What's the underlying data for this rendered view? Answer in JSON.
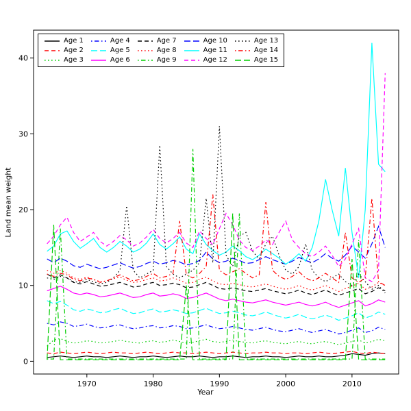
{
  "figure": {
    "xlabel": "Year",
    "ylabel": "Land mean weight"
  },
  "chart_data": {
    "type": "line",
    "title": "",
    "xlabel": "Year",
    "ylabel": "Land mean weight",
    "xlim": [
      1964,
      2015
    ],
    "ylim": [
      0,
      42
    ],
    "x_ticks": [
      1970,
      1980,
      1990,
      2000,
      2010
    ],
    "y_ticks": [
      0,
      10,
      20,
      30,
      40
    ],
    "grid": false,
    "legend_position": "top-left",
    "x": [
      1964,
      1965,
      1966,
      1967,
      1968,
      1969,
      1970,
      1971,
      1972,
      1973,
      1974,
      1975,
      1976,
      1977,
      1978,
      1979,
      1980,
      1981,
      1982,
      1983,
      1984,
      1985,
      1986,
      1987,
      1988,
      1989,
      1990,
      1991,
      1992,
      1993,
      1994,
      1995,
      1996,
      1997,
      1998,
      1999,
      2000,
      2001,
      2002,
      2003,
      2004,
      2005,
      2006,
      2007,
      2008,
      2009,
      2010,
      2011,
      2012,
      2013,
      2014,
      2015
    ],
    "series": [
      {
        "name": "Age 1",
        "color": "#000000",
        "linestyle": "solid",
        "values": [
          0.5,
          0.6,
          0.7,
          0.6,
          0.5,
          0.6,
          0.7,
          0.6,
          0.6,
          0.5,
          0.6,
          0.7,
          0.6,
          0.5,
          0.6,
          0.6,
          0.7,
          0.6,
          0.5,
          0.6,
          0.7,
          0.6,
          0.6,
          0.7,
          0.6,
          0.5,
          0.6,
          0.6,
          0.7,
          0.6,
          0.5,
          0.6,
          0.6,
          0.7,
          0.6,
          0.6,
          0.5,
          0.6,
          0.7,
          0.6,
          0.6,
          0.7,
          0.6,
          0.6,
          0.7,
          0.8,
          1.0,
          0.9,
          0.8,
          1.0,
          1.1,
          1.0
        ]
      },
      {
        "name": "Age 2",
        "color": "#FF0000",
        "linestyle": "dashed",
        "values": [
          1.1,
          1.0,
          1.2,
          1.1,
          1.0,
          1.1,
          1.2,
          1.1,
          1.0,
          1.1,
          1.2,
          1.1,
          1.1,
          1.0,
          1.1,
          1.2,
          1.1,
          1.0,
          1.1,
          1.2,
          1.1,
          1.1,
          1.0,
          1.1,
          1.2,
          1.1,
          1.0,
          1.1,
          1.2,
          1.1,
          1.0,
          1.1,
          1.1,
          1.2,
          1.1,
          1.1,
          1.0,
          1.1,
          1.1,
          1.0,
          1.1,
          1.2,
          1.1,
          1.0,
          1.1,
          1.2,
          1.3,
          1.1,
          1.0,
          1.2,
          1.1,
          1.0
        ]
      },
      {
        "name": "Age 3",
        "color": "#00CD00",
        "linestyle": "dotted",
        "values": [
          2.0,
          2.8,
          3.0,
          2.6,
          2.4,
          2.5,
          2.7,
          2.6,
          2.4,
          2.5,
          2.6,
          2.8,
          2.6,
          2.5,
          2.4,
          2.6,
          2.7,
          2.5,
          2.6,
          2.8,
          2.6,
          2.4,
          2.5,
          2.7,
          2.9,
          2.6,
          2.5,
          2.6,
          2.8,
          2.6,
          2.5,
          2.4,
          2.6,
          2.7,
          2.5,
          2.4,
          2.3,
          2.5,
          2.6,
          2.4,
          2.3,
          2.5,
          2.6,
          2.4,
          2.2,
          2.4,
          2.6,
          2.8,
          2.4,
          2.6,
          2.9,
          2.7
        ]
      },
      {
        "name": "Age 4",
        "color": "#0000FF",
        "linestyle": "dashdot",
        "values": [
          5.0,
          4.8,
          5.2,
          5.0,
          4.6,
          4.7,
          4.9,
          4.6,
          4.4,
          4.5,
          4.7,
          4.8,
          4.5,
          4.3,
          4.4,
          4.6,
          4.7,
          4.4,
          4.5,
          4.7,
          4.6,
          4.3,
          4.4,
          4.6,
          4.8,
          4.5,
          4.3,
          4.4,
          4.6,
          4.4,
          4.2,
          4.1,
          4.3,
          4.5,
          4.2,
          4.0,
          3.9,
          4.1,
          4.3,
          4.0,
          3.8,
          4.0,
          4.2,
          3.9,
          3.6,
          3.8,
          4.1,
          4.4,
          3.8,
          4.0,
          4.5,
          4.2
        ]
      },
      {
        "name": "Age 5",
        "color": "#00FFFF",
        "linestyle": "longdash",
        "values": [
          8.0,
          7.6,
          7.9,
          7.4,
          6.8,
          6.6,
          6.9,
          6.7,
          6.4,
          6.5,
          6.8,
          7.0,
          6.6,
          6.3,
          6.4,
          6.7,
          6.9,
          6.5,
          6.6,
          6.8,
          6.6,
          6.3,
          6.4,
          6.7,
          7.0,
          6.6,
          6.3,
          6.4,
          6.6,
          6.4,
          6.1,
          6.0,
          6.2,
          6.5,
          6.2,
          5.9,
          5.7,
          5.9,
          6.2,
          5.8,
          5.6,
          5.8,
          6.1,
          5.8,
          5.4,
          5.7,
          6.0,
          6.4,
          5.7,
          6.0,
          6.5,
          6.2
        ]
      },
      {
        "name": "Age 6",
        "color": "#FF00FF",
        "linestyle": "solid",
        "values": [
          9.3,
          9.6,
          9.9,
          9.5,
          9.0,
          8.8,
          9.0,
          8.8,
          8.5,
          8.6,
          8.8,
          9.0,
          8.7,
          8.4,
          8.5,
          8.8,
          9.0,
          8.6,
          8.7,
          8.9,
          8.7,
          8.3,
          8.4,
          8.7,
          9.0,
          8.6,
          8.2,
          8.0,
          8.2,
          8.0,
          7.8,
          7.7,
          7.9,
          8.1,
          7.8,
          7.6,
          7.4,
          7.6,
          7.8,
          7.5,
          7.3,
          7.5,
          7.8,
          7.4,
          7.1,
          7.4,
          7.7,
          8.0,
          7.3,
          7.6,
          8.1,
          7.8
        ]
      },
      {
        "name": "Age 7",
        "color": "#000000",
        "linestyle": "dashed",
        "values": [
          11.5,
          11.0,
          11.4,
          11.0,
          10.4,
          10.2,
          10.5,
          10.2,
          9.9,
          10.0,
          10.2,
          10.4,
          10.1,
          9.8,
          9.9,
          10.2,
          10.4,
          10.0,
          10.1,
          10.3,
          10.1,
          9.7,
          9.8,
          10.1,
          10.4,
          10.0,
          9.6,
          9.5,
          9.7,
          9.5,
          9.3,
          9.2,
          9.4,
          9.6,
          9.3,
          9.1,
          8.9,
          9.1,
          9.4,
          9.0,
          8.8,
          9.1,
          9.4,
          9.0,
          8.7,
          9.0,
          9.3,
          9.6,
          8.9,
          9.2,
          9.7,
          9.3
        ]
      },
      {
        "name": "Age 8",
        "color": "#FF0000",
        "linestyle": "dotted",
        "values": [
          12.0,
          11.6,
          12.0,
          11.6,
          11.0,
          10.8,
          11.1,
          10.8,
          10.5,
          10.6,
          10.9,
          11.1,
          10.7,
          10.4,
          10.5,
          10.8,
          11.0,
          10.6,
          10.7,
          11.0,
          10.7,
          10.3,
          10.4,
          10.8,
          11.1,
          10.6,
          10.2,
          10.1,
          10.3,
          10.1,
          9.9,
          9.8,
          10.0,
          10.2,
          9.9,
          9.7,
          9.5,
          9.7,
          10.0,
          9.6,
          9.4,
          9.7,
          10.0,
          9.6,
          9.2,
          9.6,
          9.9,
          10.3,
          9.5,
          9.8,
          10.4,
          10.0
        ]
      },
      {
        "name": "Age 9",
        "color": "#00CD00",
        "linestyle": "dashdot",
        "values": [
          0.3,
          0.3,
          17.5,
          0.3,
          0.3,
          0.3,
          0.3,
          0.3,
          0.3,
          0.3,
          0.3,
          0.3,
          0.3,
          0.3,
          0.3,
          0.3,
          0.3,
          0.3,
          0.3,
          0.3,
          0.3,
          0.3,
          28.0,
          0.3,
          0.3,
          0.3,
          0.3,
          0.3,
          0.3,
          19.5,
          0.3,
          0.3,
          0.3,
          0.3,
          0.3,
          0.3,
          0.3,
          0.3,
          0.3,
          0.3,
          0.3,
          0.3,
          0.3,
          0.3,
          0.3,
          0.3,
          0.3,
          16.0,
          0.3,
          0.3,
          0.3,
          0.3
        ]
      },
      {
        "name": "Age 10",
        "color": "#0000FF",
        "linestyle": "longdash",
        "values": [
          13.5,
          13.0,
          13.6,
          13.2,
          12.6,
          12.4,
          12.8,
          12.5,
          12.2,
          12.4,
          12.7,
          13.0,
          12.6,
          12.3,
          12.5,
          12.9,
          13.2,
          12.8,
          13.0,
          13.3,
          13.1,
          12.7,
          12.9,
          13.3,
          14.4,
          13.5,
          13.0,
          13.2,
          13.6,
          13.3,
          12.9,
          13.0,
          13.4,
          13.8,
          13.4,
          13.1,
          12.8,
          13.2,
          13.7,
          13.3,
          13.0,
          13.5,
          14.2,
          13.6,
          13.2,
          14.0,
          15.2,
          14.4,
          13.6,
          15.5,
          17.8,
          15.0
        ]
      },
      {
        "name": "Age 11",
        "color": "#00FFFF",
        "linestyle": "solid",
        "values": [
          14.5,
          15.2,
          16.8,
          17.2,
          15.8,
          14.9,
          15.5,
          16.2,
          15.0,
          14.4,
          15.0,
          15.8,
          15.2,
          14.4,
          14.8,
          15.6,
          16.8,
          15.4,
          14.8,
          15.5,
          16.4,
          14.8,
          14.2,
          16.8,
          15.4,
          14.6,
          14.0,
          14.4,
          15.2,
          14.6,
          13.8,
          13.4,
          14.0,
          14.8,
          14.2,
          13.6,
          12.8,
          13.4,
          14.2,
          13.2,
          15.0,
          18.5,
          24.0,
          20.0,
          16.5,
          25.5,
          17.0,
          11.0,
          20.0,
          42.0,
          26.0,
          25.0
        ]
      },
      {
        "name": "Age 12",
        "color": "#FF00FF",
        "linestyle": "dashed",
        "values": [
          15.5,
          16.5,
          18.0,
          19.0,
          17.0,
          15.8,
          16.4,
          17.0,
          15.8,
          15.2,
          15.8,
          16.6,
          16.0,
          15.2,
          15.6,
          16.4,
          17.4,
          16.2,
          15.6,
          16.2,
          17.0,
          15.6,
          15.0,
          17.2,
          16.2,
          15.4,
          17.5,
          19.5,
          18.0,
          16.0,
          15.0,
          14.6,
          15.2,
          16.0,
          15.4,
          17.0,
          18.5,
          16.0,
          15.0,
          14.2,
          13.8,
          14.4,
          15.2,
          14.0,
          12.5,
          13.5,
          15.5,
          17.5,
          11.0,
          10.5,
          12.0,
          38.0
        ]
      },
      {
        "name": "Age 13",
        "color": "#000000",
        "linestyle": "dotted",
        "values": [
          11.0,
          10.8,
          11.2,
          11.0,
          10.5,
          10.4,
          10.8,
          10.5,
          10.2,
          10.4,
          11.0,
          12.0,
          20.5,
          12.0,
          11.0,
          11.5,
          12.0,
          28.5,
          12.5,
          11.5,
          11.0,
          11.5,
          12.0,
          13.0,
          21.5,
          13.0,
          31.0,
          14.0,
          12.5,
          16.5,
          17.0,
          14.5,
          13.5,
          15.5,
          16.5,
          14.0,
          12.0,
          11.5,
          12.5,
          15.5,
          12.0,
          11.0,
          10.5,
          11.0,
          11.5,
          10.5,
          10.0,
          11.5,
          10.5,
          9.5,
          10.0,
          9.0
        ]
      },
      {
        "name": "Age 14",
        "color": "#FF0000",
        "linestyle": "dashdot",
        "values": [
          11.5,
          11.2,
          11.6,
          11.4,
          10.8,
          10.6,
          11.0,
          10.8,
          10.4,
          10.6,
          11.0,
          11.4,
          11.0,
          10.6,
          10.8,
          11.2,
          11.6,
          11.0,
          11.2,
          11.6,
          18.5,
          11.4,
          11.0,
          11.6,
          12.5,
          22.0,
          12.0,
          11.4,
          11.8,
          12.2,
          11.6,
          11.0,
          11.4,
          21.0,
          12.0,
          11.2,
          10.8,
          11.2,
          11.8,
          11.0,
          10.6,
          11.0,
          11.6,
          11.0,
          10.4,
          17.0,
          11.0,
          10.4,
          11.0,
          21.5,
          10.5,
          10.0
        ]
      },
      {
        "name": "Age 15",
        "color": "#00CD00",
        "linestyle": "longdash",
        "values": [
          0.2,
          18.0,
          0.2,
          0.2,
          0.2,
          0.2,
          0.2,
          0.2,
          0.2,
          0.2,
          0.2,
          0.2,
          0.2,
          0.2,
          0.2,
          0.2,
          0.2,
          0.2,
          0.2,
          0.2,
          0.2,
          10.0,
          0.2,
          0.2,
          0.2,
          0.2,
          0.2,
          0.2,
          19.5,
          0.2,
          0.2,
          0.2,
          0.2,
          0.2,
          0.2,
          0.2,
          0.2,
          0.2,
          0.2,
          0.2,
          0.2,
          0.2,
          0.2,
          0.2,
          0.2,
          0.2,
          13.5,
          0.2,
          0.2,
          0.2,
          0.2,
          0.2
        ]
      }
    ]
  }
}
